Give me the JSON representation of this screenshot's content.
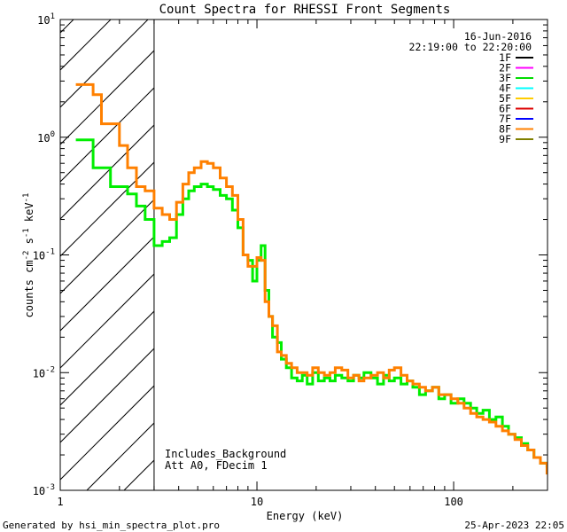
{
  "chart_data": {
    "type": "line",
    "title": "Count Spectra for RHESSI Front Segments",
    "xlabel": "Energy (keV)",
    "ylabel_parts": [
      "counts cm",
      "-2",
      " s",
      "-1",
      " keV",
      "-1"
    ],
    "xscale": "log",
    "yscale": "log",
    "xlim": [
      1,
      300
    ],
    "ylim": [
      0.001,
      10
    ],
    "x_ticks": [
      {
        "v": 1,
        "label": "1"
      },
      {
        "v": 10,
        "label": "10"
      },
      {
        "v": 100,
        "label": "100"
      }
    ],
    "y_ticks": [
      {
        "v": 10,
        "base": "10",
        "exp": "1"
      },
      {
        "v": 1,
        "base": "10",
        "exp": "0"
      },
      {
        "v": 0.1,
        "base": "10",
        "exp": "-1"
      },
      {
        "v": 0.01,
        "base": "10",
        "exp": "-2"
      },
      {
        "v": 0.001,
        "base": "10",
        "exp": "-3"
      }
    ],
    "date": "16-Jun-2016",
    "time_range": "22:19:00 to 22:20:00",
    "legend": [
      {
        "label": "1F",
        "color": "#000000"
      },
      {
        "label": "2F",
        "color": "#ff00ff"
      },
      {
        "label": "3F",
        "color": "#00dd00"
      },
      {
        "label": "4F",
        "color": "#00ffff"
      },
      {
        "label": "5F",
        "color": "#ffcc00"
      },
      {
        "label": "6F",
        "color": "#dd0000"
      },
      {
        "label": "7F",
        "color": "#0000ff"
      },
      {
        "label": "8F",
        "color": "#ff8000"
      },
      {
        "label": "9F",
        "color": "#808000"
      }
    ],
    "hatched_region_xmax": 3,
    "annotations": [
      "Includes_Background",
      "Att A0, FDecim 1"
    ],
    "series": [
      {
        "name": "3F",
        "color": "#00ee00",
        "x": [
          1.2,
          1.33,
          1.47,
          1.62,
          1.8,
          2.0,
          2.2,
          2.44,
          2.7,
          3.0,
          3.3,
          3.6,
          3.9,
          4.2,
          4.5,
          4.8,
          5.2,
          5.6,
          6.0,
          6.5,
          7.0,
          7.5,
          8.0,
          8.5,
          9.0,
          9.5,
          10.0,
          10.5,
          11.0,
          11.5,
          12.0,
          12.7,
          13.3,
          14.1,
          15.0,
          16.0,
          17.0,
          18.0,
          19.2,
          20.5,
          22.0,
          23.5,
          25.0,
          27.0,
          29.0,
          31.0,
          33.0,
          35.0,
          38.0,
          41.0,
          44.0,
          47.0,
          50.0,
          54.0,
          58.0,
          62.0,
          67.0,
          72.0,
          78.0,
          84.0,
          90.0,
          97.0,
          105.0,
          113.0,
          122.0,
          131.0,
          141.0,
          152.0,
          164.0,
          177.0,
          190.0,
          205.0,
          221.0,
          238.0,
          256.0,
          276.0,
          298.0
        ],
        "y": [
          0.95,
          0.95,
          0.55,
          0.55,
          0.38,
          0.38,
          0.33,
          0.26,
          0.2,
          0.12,
          0.13,
          0.14,
          0.22,
          0.3,
          0.35,
          0.38,
          0.4,
          0.38,
          0.36,
          0.32,
          0.3,
          0.24,
          0.17,
          0.1,
          0.09,
          0.06,
          0.09,
          0.12,
          0.05,
          0.03,
          0.02,
          0.018,
          0.013,
          0.011,
          0.009,
          0.0085,
          0.0095,
          0.008,
          0.01,
          0.0085,
          0.009,
          0.0085,
          0.0095,
          0.009,
          0.0085,
          0.0095,
          0.009,
          0.01,
          0.009,
          0.008,
          0.0095,
          0.0085,
          0.009,
          0.008,
          0.0085,
          0.0075,
          0.0065,
          0.007,
          0.0075,
          0.006,
          0.0065,
          0.0055,
          0.006,
          0.0055,
          0.005,
          0.0045,
          0.0048,
          0.004,
          0.0042,
          0.0035,
          0.003,
          0.0028,
          0.0025,
          0.0022,
          0.0019,
          0.0017,
          0.0016
        ]
      },
      {
        "name": "8F",
        "color": "#ff8000",
        "x": [
          1.2,
          1.33,
          1.47,
          1.62,
          1.8,
          2.0,
          2.2,
          2.44,
          2.7,
          3.0,
          3.3,
          3.6,
          3.9,
          4.2,
          4.5,
          4.8,
          5.2,
          5.6,
          6.0,
          6.5,
          7.0,
          7.5,
          8.0,
          8.5,
          9.0,
          9.5,
          10.0,
          10.5,
          11.0,
          11.5,
          12.0,
          12.7,
          13.3,
          14.1,
          15.0,
          16.0,
          17.0,
          18.0,
          19.2,
          20.5,
          22.0,
          23.5,
          25.0,
          27.0,
          29.0,
          31.0,
          33.0,
          35.0,
          38.0,
          41.0,
          44.0,
          47.0,
          50.0,
          54.0,
          58.0,
          62.0,
          67.0,
          72.0,
          78.0,
          84.0,
          90.0,
          97.0,
          105.0,
          113.0,
          122.0,
          131.0,
          141.0,
          152.0,
          164.0,
          177.0,
          190.0,
          205.0,
          221.0,
          238.0,
          256.0,
          276.0,
          298.0
        ],
        "y": [
          2.8,
          2.8,
          2.3,
          1.3,
          1.3,
          0.85,
          0.55,
          0.38,
          0.35,
          0.25,
          0.22,
          0.2,
          0.28,
          0.4,
          0.5,
          0.55,
          0.62,
          0.6,
          0.55,
          0.45,
          0.38,
          0.32,
          0.2,
          0.1,
          0.08,
          0.08,
          0.095,
          0.09,
          0.04,
          0.03,
          0.025,
          0.015,
          0.014,
          0.012,
          0.011,
          0.01,
          0.01,
          0.0095,
          0.011,
          0.01,
          0.0095,
          0.01,
          0.011,
          0.0105,
          0.009,
          0.0095,
          0.0085,
          0.009,
          0.0095,
          0.01,
          0.009,
          0.0105,
          0.011,
          0.0095,
          0.0085,
          0.008,
          0.0075,
          0.007,
          0.0075,
          0.0065,
          0.0065,
          0.006,
          0.0055,
          0.005,
          0.0045,
          0.0042,
          0.004,
          0.0038,
          0.0035,
          0.0032,
          0.003,
          0.0027,
          0.0024,
          0.0022,
          0.0019,
          0.0017,
          0.0014
        ]
      }
    ]
  },
  "footer": {
    "left": "Generated by hsi_min_spectra_plot.pro",
    "right": "25-Apr-2023 22:05"
  }
}
